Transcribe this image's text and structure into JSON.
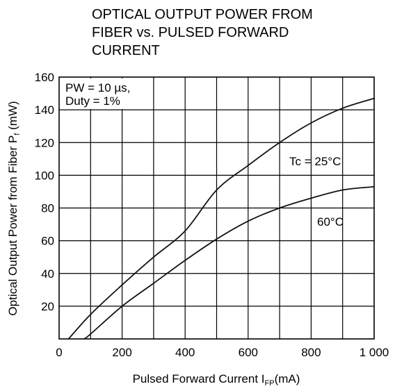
{
  "title_lines": [
    "OPTICAL OUTPUT POWER FROM",
    "FIBER vs. PULSED FORWARD",
    "CURRENT"
  ],
  "chart_data": {
    "type": "line",
    "title": "OPTICAL OUTPUT POWER FROM FIBER vs. PULSED FORWARD CURRENT",
    "xlabel": "Pulsed Forward Current",
    "xlabel_symbol": "I",
    "xlabel_symbol_sub": "FP",
    "xlabel_unit": "(mA)",
    "ylabel": "Optical Output Power from Fiber",
    "ylabel_symbol": "P",
    "ylabel_symbol_sub": "f",
    "ylabel_unit": "(mW)",
    "xlim": [
      0,
      1000
    ],
    "ylim": [
      0,
      160
    ],
    "xticks": [
      0,
      200,
      400,
      600,
      800,
      1000
    ],
    "xtick_labels": [
      "0",
      "200",
      "400",
      "600",
      "800",
      "1 000"
    ],
    "yticks": [
      20,
      40,
      60,
      80,
      100,
      120,
      140,
      160
    ],
    "ytick_labels": [
      "20",
      "40",
      "60",
      "80",
      "100",
      "120",
      "140",
      "160"
    ],
    "grid_x_step": 100,
    "grid_y_step": 20,
    "grid": true,
    "conditions": [
      "PW = 10 µs,",
      "Duty = 1%"
    ],
    "series": [
      {
        "name": "Tc = 25°C",
        "x": [
          30,
          100,
          200,
          300,
          400,
          500,
          600,
          700,
          800,
          900,
          1000
        ],
        "y": [
          0,
          15,
          33,
          50,
          66,
          91,
          106,
          120,
          132,
          141,
          147
        ]
      },
      {
        "name": "60°C",
        "x": [
          80,
          100,
          200,
          300,
          400,
          500,
          600,
          700,
          800,
          900,
          1000
        ],
        "y": [
          0,
          3,
          20,
          34,
          48,
          61,
          72,
          80,
          86,
          91,
          93
        ]
      }
    ],
    "curve_labels": [
      {
        "text": "Tc = 25°C",
        "series": 0
      },
      {
        "text": "60°C",
        "series": 1
      }
    ]
  }
}
